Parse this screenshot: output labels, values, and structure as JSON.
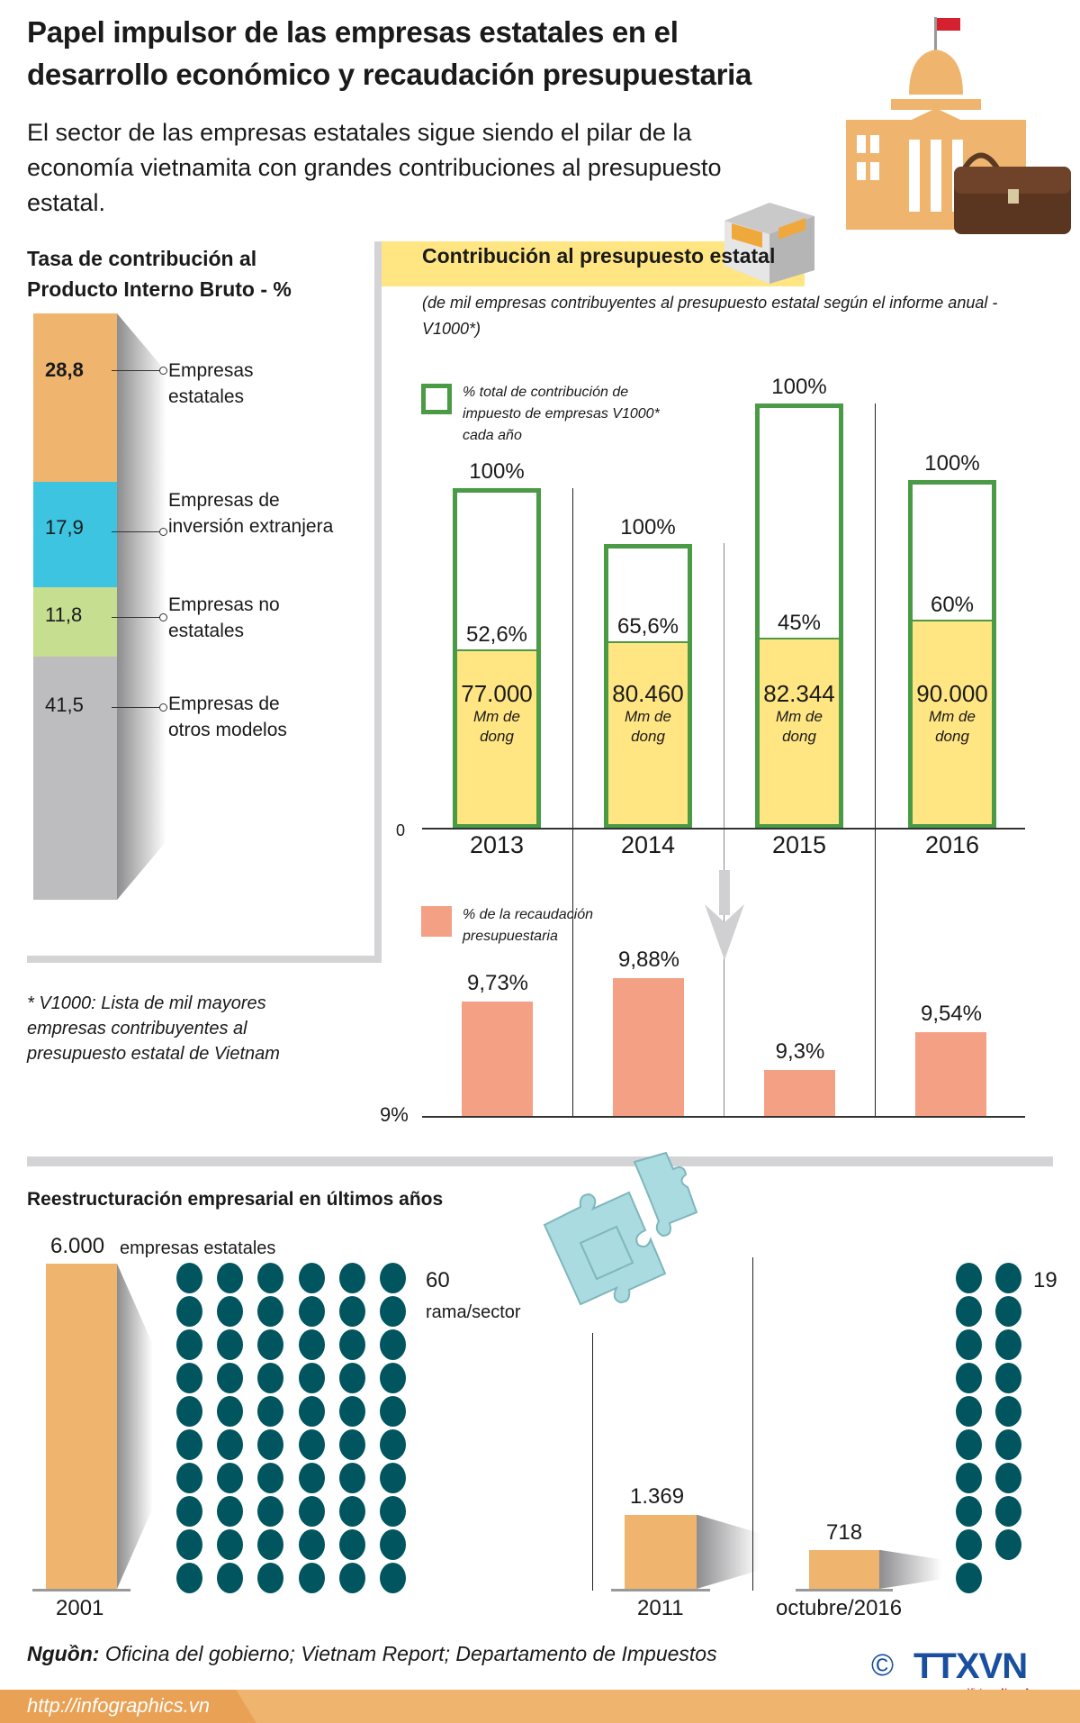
{
  "header": {
    "title_line1": "Papel impulsor de las empresas estatales en el",
    "title_line2": "desarrollo económico y recaudación presupuestaria",
    "subtitle": "El sector de las empresas estatales sigue siendo el pilar de la economía vietnamita con grandes contribuciones al presupuesto estatal."
  },
  "gdp": {
    "title_line1": "Tasa de contribución al",
    "title_line2": "Producto Interno Bruto - %",
    "items": [
      {
        "value": "28,8",
        "label_line1": "Empresas",
        "label_line2": "estatales",
        "share": 28.8,
        "color": "#efb56f"
      },
      {
        "value": "17,9",
        "label_line1": "Empresas de",
        "label_line2": "inversión extranjera",
        "share": 17.9,
        "color": "#3cc4e0"
      },
      {
        "value": "11,8",
        "label_line1": "Empresas no",
        "label_line2": "estatales",
        "share": 11.8,
        "color": "#c5de90"
      },
      {
        "value": "41,5",
        "label_line1": "Empresas de",
        "label_line2": "otros modelos",
        "share": 41.5,
        "color": "#bdbdbf"
      }
    ]
  },
  "chart_data": [
    {
      "type": "bar",
      "title": "Contribución al presupuesto estatal",
      "subtitle": "(de mil empresas contribuyentes al presupuesto estatal según el informe anual -V1000*)",
      "legend": "% total de contribución de impuesto de empresas V1000* cada año",
      "axis_zero_label": "0",
      "categories": [
        "2013",
        "2014",
        "2015",
        "2016"
      ],
      "total_label": "100%",
      "soe_share_labels": [
        "52,6%",
        "65,6%",
        "45%",
        "60%"
      ],
      "soe_share_percent": [
        52.6,
        65.6,
        45,
        60
      ],
      "soe_values": [
        77000,
        80460,
        82344,
        90000
      ],
      "soe_value_labels": [
        "77.000",
        "80.460",
        "82.344",
        "90.000"
      ],
      "unit_line1": "Mm de",
      "unit_line2": "dong",
      "colors": {
        "total_border": "#4a9a46",
        "soe_fill": "#ffe682"
      }
    },
    {
      "type": "bar",
      "legend": "% de la recaudación presupuestaria",
      "baseline_label": "9%",
      "ylim": [
        9,
        10
      ],
      "categories": [
        "2013",
        "2014",
        "2015",
        "2016"
      ],
      "values": [
        9.73,
        9.88,
        9.3,
        9.54
      ],
      "value_labels": [
        "9,73%",
        "9,88%",
        "9,3%",
        "9,54%"
      ],
      "color": "#f4a084"
    },
    {
      "type": "bar",
      "title": "Reestructuración empresarial en últimos años",
      "categories": [
        "2001",
        "2011",
        "octubre/2016"
      ],
      "values": [
        6000,
        1369,
        718
      ],
      "value_labels": [
        "6.000",
        "1.369",
        "718"
      ],
      "unit": "empresas estatales",
      "color": "#efb56f",
      "sectors": [
        {
          "count": 60,
          "count_label": "60",
          "label": "rama/sector"
        },
        {
          "count": 19,
          "count_label": "19"
        }
      ],
      "dot_color": "#00555f"
    }
  ],
  "footnote": "* V1000: Lista de mil mayores empresas contribuyentes al presupuesto estatal de Vietnam",
  "footer": {
    "source_label": "Nguồn:",
    "source_text": "Oficina del gobierno; Vietnam Report; Departamento de Impuestos",
    "url": "http://infographics.vn",
    "copyright": "©",
    "logo_text": "TTXVN",
    "logo_sub": "Vietnam News Agency"
  }
}
